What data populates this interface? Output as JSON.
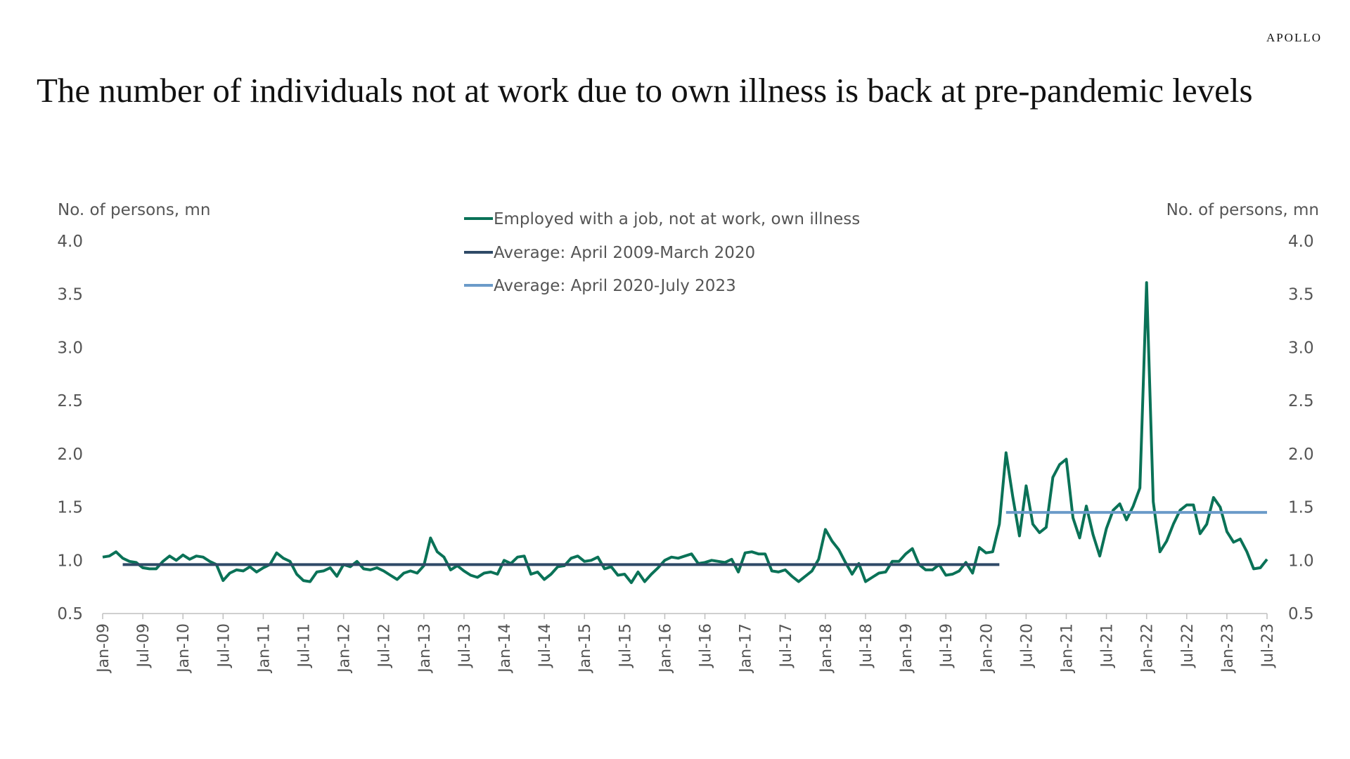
{
  "brand": "APOLLO",
  "title": "The number of individuals not at work due to own illness is back at pre-pandemic levels",
  "colors": {
    "illness": "#0a7257",
    "avg_pre": "#2f4a67",
    "avg_post": "#6b9bc9",
    "axis": "#bfbfbf",
    "text": "#555555"
  },
  "chart_data": {
    "type": "line",
    "ylabel_left": "No. of persons, mn",
    "ylabel_right": "No. of persons, mn",
    "ylim": [
      0.5,
      4.0
    ],
    "yticks": [
      "4.0",
      "3.5",
      "3.0",
      "2.5",
      "2.0",
      "1.5",
      "1.0",
      "0.5"
    ],
    "ytick_values": [
      4.0,
      3.5,
      3.0,
      2.5,
      2.0,
      1.5,
      1.0,
      0.5
    ],
    "x_labels": [
      "Jan-09",
      "Jul-09",
      "Jan-10",
      "Jul-10",
      "Jan-11",
      "Jul-11",
      "Jan-12",
      "Jul-12",
      "Jan-13",
      "Jul-13",
      "Jan-14",
      "Jul-14",
      "Jan-15",
      "Jul-15",
      "Jan-16",
      "Jul-16",
      "Jan-17",
      "Jul-17",
      "Jan-18",
      "Jul-18",
      "Jan-19",
      "Jul-19",
      "Jan-20",
      "Jul-20",
      "Jan-21",
      "Jul-21",
      "Jan-22",
      "Jul-22",
      "Jan-23",
      "Jul-23"
    ],
    "x_range": [
      "Jan-09",
      "Jul-23"
    ],
    "grid": false,
    "legend_position": "top-center",
    "series": [
      {
        "name": "Employed with a job, not at work, own illness",
        "start": "Jan-09",
        "values": [
          1.03,
          1.04,
          1.08,
          1.02,
          0.99,
          0.98,
          0.93,
          0.92,
          0.92,
          0.99,
          1.04,
          1.0,
          1.05,
          1.01,
          1.04,
          1.03,
          0.99,
          0.96,
          0.81,
          0.88,
          0.91,
          0.9,
          0.94,
          0.89,
          0.93,
          0.96,
          1.07,
          1.02,
          0.99,
          0.87,
          0.81,
          0.8,
          0.89,
          0.9,
          0.93,
          0.85,
          0.96,
          0.94,
          0.99,
          0.92,
          0.91,
          0.93,
          0.9,
          0.86,
          0.82,
          0.88,
          0.9,
          0.88,
          0.95,
          1.21,
          1.08,
          1.03,
          0.91,
          0.95,
          0.9,
          0.86,
          0.84,
          0.88,
          0.89,
          0.87,
          1.0,
          0.97,
          1.03,
          1.04,
          0.87,
          0.89,
          0.82,
          0.87,
          0.94,
          0.95,
          1.02,
          1.04,
          0.99,
          1.0,
          1.03,
          0.92,
          0.94,
          0.86,
          0.87,
          0.79,
          0.89,
          0.8,
          0.87,
          0.93,
          1.0,
          1.03,
          1.02,
          1.04,
          1.06,
          0.97,
          0.98,
          1.0,
          0.99,
          0.98,
          1.01,
          0.89,
          1.07,
          1.08,
          1.06,
          1.06,
          0.9,
          0.89,
          0.91,
          0.85,
          0.8,
          0.85,
          0.9,
          1.01,
          1.29,
          1.18,
          1.1,
          0.98,
          0.87,
          0.97,
          0.8,
          0.84,
          0.88,
          0.89,
          0.99,
          0.99,
          1.06,
          1.11,
          0.96,
          0.91,
          0.91,
          0.96,
          0.86,
          0.87,
          0.9,
          0.98,
          0.88,
          1.12,
          1.07,
          1.08,
          1.34,
          2.01,
          1.6,
          1.23,
          1.7,
          1.34,
          1.26,
          1.31,
          1.78,
          1.9,
          1.95,
          1.4,
          1.21,
          1.51,
          1.24,
          1.04,
          1.3,
          1.47,
          1.53,
          1.38,
          1.51,
          1.68,
          3.61,
          1.55,
          1.08,
          1.18,
          1.34,
          1.47,
          1.52,
          1.52,
          1.25,
          1.34,
          1.59,
          1.5,
          1.27,
          1.17,
          1.2,
          1.08,
          0.92,
          0.93,
          1.01
        ]
      },
      {
        "name": "Average: April 2009-March 2020",
        "from": "Apr-09",
        "to": "Mar-20",
        "value": 0.96
      },
      {
        "name": "Average: April 2020-July 2023",
        "from": "Apr-20",
        "to": "Jul-23",
        "value": 1.45
      }
    ]
  }
}
